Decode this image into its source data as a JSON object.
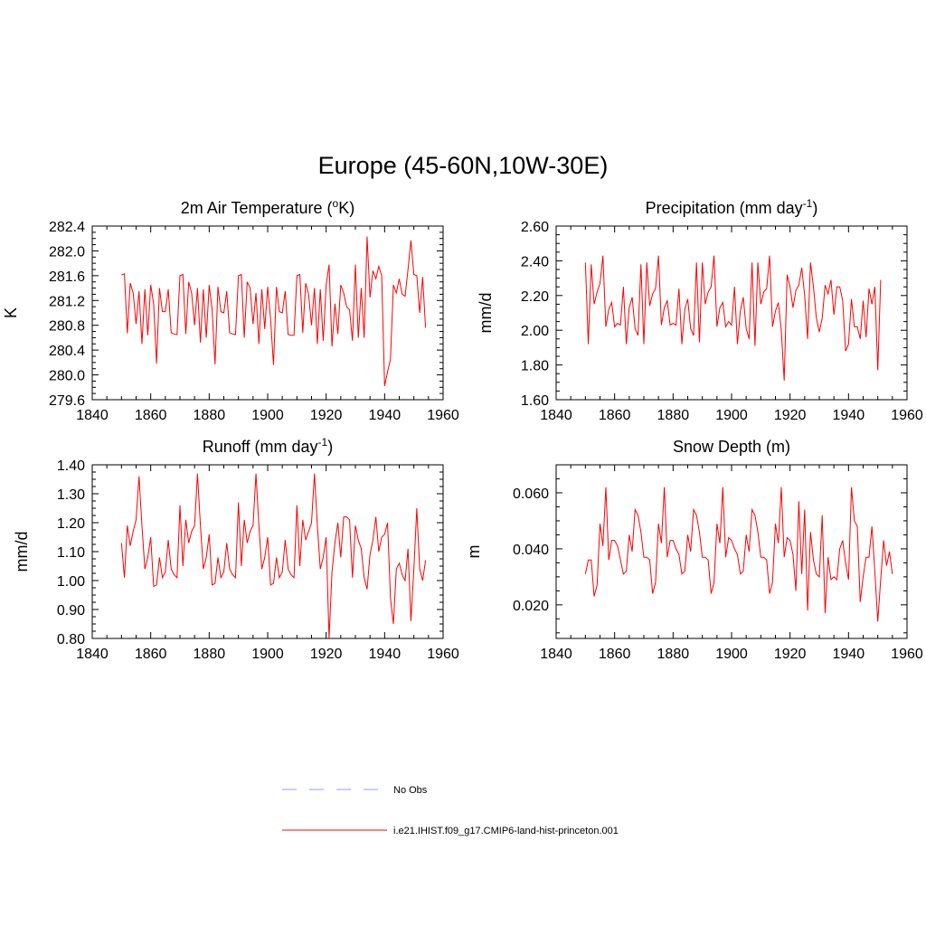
{
  "title": "Europe (45-60N,10W-30E)",
  "legend": [
    {
      "label": "No Obs",
      "color": "#9999ff",
      "dash": true
    },
    {
      "label": "i.e21.IHIST.f09_g17.CMIP6-land-hist-princeton.001",
      "color": "#ff0000",
      "dash": false
    }
  ],
  "chart_data": [
    {
      "type": "line",
      "title": "2m Air Temperature (",
      "title_sup": "o",
      "title_after": "K)",
      "ylabel": "K",
      "xlim": [
        1840,
        1960
      ],
      "ylim": [
        279.6,
        282.4
      ],
      "xticks": [
        1840,
        1860,
        1880,
        1900,
        1920,
        1940,
        1960
      ],
      "yticks": [
        279.6,
        280.0,
        280.4,
        280.8,
        281.2,
        281.6,
        282.0,
        282.4
      ],
      "ytick_labels": [
        "279.6",
        "280.0",
        "280.4",
        "280.8",
        "281.2",
        "281.6",
        "282.0",
        "282.4"
      ],
      "x_start": 1850,
      "series": [
        {
          "color": "#ff0000",
          "values": [
            281.61,
            281.63,
            280.67,
            281.48,
            281.32,
            280.82,
            281.35,
            280.5,
            281.38,
            280.64,
            281.45,
            281.15,
            280.18,
            281.4,
            281.02,
            281.02,
            281.38,
            280.68,
            280.66,
            280.65,
            281.6,
            281.62,
            280.66,
            281.5,
            281.32,
            280.8,
            281.4,
            280.52,
            281.38,
            280.6,
            281.45,
            281.05,
            280.17,
            281.42,
            281.02,
            281.0,
            281.35,
            280.68,
            280.66,
            280.65,
            281.6,
            281.62,
            280.6,
            281.5,
            281.4,
            280.82,
            281.32,
            280.5,
            281.38,
            280.74,
            281.42,
            280.9,
            280.16,
            281.42,
            281.02,
            281.0,
            281.35,
            280.65,
            280.64,
            280.64,
            281.6,
            281.62,
            280.68,
            281.48,
            281.3,
            280.8,
            281.4,
            280.5,
            281.38,
            280.55,
            281.45,
            281.78,
            280.46,
            281.15,
            280.66,
            281.45,
            281.32,
            281.1,
            281.05,
            280.55,
            281.78,
            280.6,
            281.4,
            280.6,
            282.23,
            281.25,
            281.68,
            281.55,
            281.75,
            281.6,
            279.82,
            280.05,
            280.25,
            281.45,
            281.32,
            281.55,
            281.3,
            281.27,
            281.7,
            282.17,
            281.62,
            281.6,
            281.0,
            281.58,
            280.76
          ]
        }
      ]
    },
    {
      "type": "line",
      "title": "Precipitation (mm day",
      "title_sup": "-1",
      "title_after": ")",
      "ylabel": "mm/d",
      "xlim": [
        1840,
        1960
      ],
      "ylim": [
        1.6,
        2.6
      ],
      "xticks": [
        1840,
        1860,
        1880,
        1900,
        1920,
        1940,
        1960
      ],
      "yticks": [
        1.6,
        1.8,
        2.0,
        2.2,
        2.4,
        2.6
      ],
      "ytick_labels": [
        "1.60",
        "1.80",
        "2.00",
        "2.20",
        "2.40",
        "2.60"
      ],
      "x_start": 1850,
      "series": [
        {
          "color": "#ff0000",
          "values": [
            2.39,
            1.92,
            2.38,
            2.15,
            2.22,
            2.27,
            2.43,
            2.02,
            2.12,
            2.16,
            2.02,
            2.04,
            2.03,
            2.25,
            1.92,
            2.13,
            2.19,
            2.01,
            1.97,
            2.38,
            1.92,
            2.39,
            2.14,
            2.21,
            2.24,
            2.43,
            2.03,
            2.13,
            2.17,
            2.03,
            2.04,
            2.03,
            2.24,
            1.92,
            2.12,
            2.18,
            2.01,
            1.97,
            2.39,
            1.93,
            2.39,
            2.15,
            2.22,
            2.25,
            2.43,
            2.02,
            2.13,
            2.16,
            2.02,
            2.05,
            2.03,
            2.25,
            1.92,
            2.11,
            2.19,
            2.01,
            1.95,
            2.39,
            1.91,
            2.39,
            2.15,
            2.22,
            2.24,
            2.43,
            2.02,
            2.11,
            2.16,
            2.0,
            1.71,
            2.32,
            2.25,
            2.13,
            2.23,
            2.26,
            2.36,
            2.2,
            1.95,
            2.39,
            2.25,
            2.07,
            1.99,
            2.07,
            2.26,
            2.21,
            2.29,
            2.09,
            2.25,
            2.25,
            2.17,
            1.88,
            1.92,
            2.18,
            2.02,
            2.02,
            1.95,
            2.17,
            1.96,
            2.24,
            2.15,
            2.25,
            1.77,
            2.29
          ]
        }
      ]
    },
    {
      "type": "line",
      "title": "Runoff (mm day",
      "title_sup": "-1",
      "title_after": ")",
      "ylabel": "mm/d",
      "xlim": [
        1840,
        1960
      ],
      "ylim": [
        0.8,
        1.4
      ],
      "xticks": [
        1840,
        1860,
        1880,
        1900,
        1920,
        1940,
        1960
      ],
      "yticks": [
        0.8,
        0.9,
        1.0,
        1.1,
        1.2,
        1.3,
        1.4
      ],
      "ytick_labels": [
        "0.80",
        "0.90",
        "1.00",
        "1.10",
        "1.20",
        "1.30",
        "1.40"
      ],
      "x_start": 1850,
      "series": [
        {
          "color": "#ff0000",
          "values": [
            1.13,
            1.01,
            1.19,
            1.12,
            1.17,
            1.21,
            1.36,
            1.19,
            1.04,
            1.08,
            1.15,
            0.98,
            0.985,
            1.08,
            1.01,
            1.03,
            1.14,
            1.04,
            1.02,
            1.01,
            1.26,
            1.05,
            1.21,
            1.13,
            1.17,
            1.19,
            1.37,
            1.19,
            1.04,
            1.08,
            1.16,
            0.985,
            0.99,
            1.08,
            1.01,
            1.03,
            1.13,
            1.04,
            1.02,
            1.01,
            1.27,
            1.05,
            1.21,
            1.13,
            1.17,
            1.19,
            1.37,
            1.19,
            1.04,
            1.08,
            1.15,
            0.985,
            0.99,
            1.08,
            1.01,
            1.03,
            1.14,
            1.04,
            1.02,
            1.01,
            1.26,
            1.05,
            1.21,
            1.14,
            1.17,
            1.2,
            1.37,
            1.19,
            1.04,
            1.08,
            1.15,
            0.8,
            1.03,
            1.13,
            1.2,
            1.08,
            1.22,
            1.22,
            1.21,
            1.01,
            1.19,
            1.14,
            1.11,
            1.01,
            0.97,
            1.09,
            1.14,
            1.22,
            1.1,
            1.15,
            1.16,
            1.2,
            0.94,
            0.85,
            1.04,
            1.06,
            1.02,
            1.0,
            1.11,
            0.86,
            1.04,
            1.25,
            1.04,
            1.0,
            1.07
          ]
        }
      ]
    },
    {
      "type": "line",
      "title": "Snow Depth (m)",
      "title_sup": "",
      "title_after": "",
      "ylabel": "m",
      "xlim": [
        1840,
        1960
      ],
      "ylim": [
        0.008,
        0.07
      ],
      "xticks": [
        1840,
        1860,
        1880,
        1900,
        1920,
        1940,
        1960
      ],
      "yticks": [
        0.02,
        0.04,
        0.06
      ],
      "ytick_labels": [
        "0.020",
        "0.040",
        "0.060"
      ],
      "x_start": 1850,
      "series": [
        {
          "color": "#ff0000",
          "values": [
            0.031,
            0.036,
            0.036,
            0.023,
            0.027,
            0.049,
            0.041,
            0.062,
            0.036,
            0.043,
            0.043,
            0.041,
            0.036,
            0.031,
            0.032,
            0.045,
            0.039,
            0.054,
            0.052,
            0.046,
            0.037,
            0.037,
            0.036,
            0.024,
            0.028,
            0.049,
            0.042,
            0.062,
            0.037,
            0.043,
            0.043,
            0.04,
            0.038,
            0.031,
            0.032,
            0.045,
            0.039,
            0.054,
            0.052,
            0.046,
            0.037,
            0.037,
            0.036,
            0.024,
            0.028,
            0.049,
            0.042,
            0.062,
            0.037,
            0.044,
            0.043,
            0.04,
            0.038,
            0.031,
            0.032,
            0.045,
            0.039,
            0.054,
            0.052,
            0.046,
            0.037,
            0.037,
            0.036,
            0.024,
            0.028,
            0.049,
            0.042,
            0.062,
            0.037,
            0.044,
            0.043,
            0.038,
            0.025,
            0.057,
            0.031,
            0.054,
            0.018,
            0.046,
            0.036,
            0.031,
            0.03,
            0.052,
            0.017,
            0.037,
            0.029,
            0.03,
            0.029,
            0.04,
            0.043,
            0.035,
            0.029,
            0.062,
            0.05,
            0.048,
            0.021,
            0.03,
            0.037,
            0.037,
            0.048,
            0.032,
            0.014,
            0.029,
            0.043,
            0.034,
            0.039,
            0.031
          ]
        }
      ]
    }
  ]
}
